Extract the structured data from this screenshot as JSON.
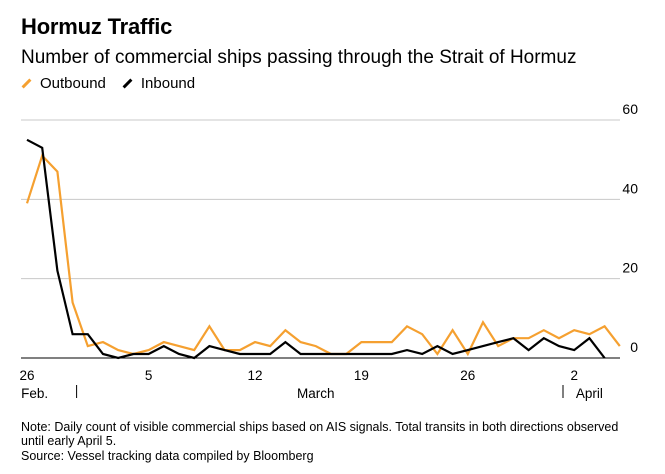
{
  "chart_data": {
    "type": "line",
    "title": "Hormuz Traffic",
    "subtitle": "Number of commercial ships passing through the Strait of Hormuz",
    "xlabel": "",
    "ylabel": "",
    "ylim": [
      0,
      60
    ],
    "yticks": [
      0,
      20,
      40,
      60
    ],
    "grid": true,
    "legend_position": "top-left",
    "x_ticks": [
      {
        "index": 0,
        "label": "26"
      },
      {
        "index": 8,
        "label": "5"
      },
      {
        "index": 15,
        "label": "12"
      },
      {
        "index": 22,
        "label": "19"
      },
      {
        "index": 29,
        "label": "26"
      },
      {
        "index": 36,
        "label": "2"
      }
    ],
    "month_labels": [
      {
        "index": 0.5,
        "label": "Feb."
      },
      {
        "index": 19,
        "label": "March"
      },
      {
        "index": 37,
        "label": "April"
      }
    ],
    "month_dividers": [
      3,
      35
    ],
    "series": [
      {
        "name": "Outbound",
        "color": "#f5a030",
        "values": [
          39,
          51,
          47,
          14,
          3,
          4,
          2,
          1,
          2,
          4,
          3,
          2,
          8,
          2,
          2,
          4,
          3,
          7,
          4,
          3,
          1,
          1,
          4,
          4,
          4,
          8,
          6,
          1,
          7,
          1,
          9,
          3,
          5,
          5,
          7,
          5,
          7,
          6,
          8,
          3
        ]
      },
      {
        "name": "Inbound",
        "color": "#000000",
        "values": [
          55,
          53,
          22,
          6,
          6,
          1,
          0,
          1,
          1,
          3,
          1,
          0,
          3,
          2,
          1,
          1,
          1,
          4,
          1,
          1,
          1,
          1,
          1,
          1,
          1,
          2,
          1,
          3,
          1,
          2,
          3,
          4,
          5,
          2,
          5,
          3,
          2,
          5,
          0
        ]
      }
    ]
  },
  "note": "Note: Daily count of visible commercial ships based on AIS signals. Total transits in both directions observed until early April 5.",
  "source": "Source: Vessel tracking data compiled by Bloomberg"
}
